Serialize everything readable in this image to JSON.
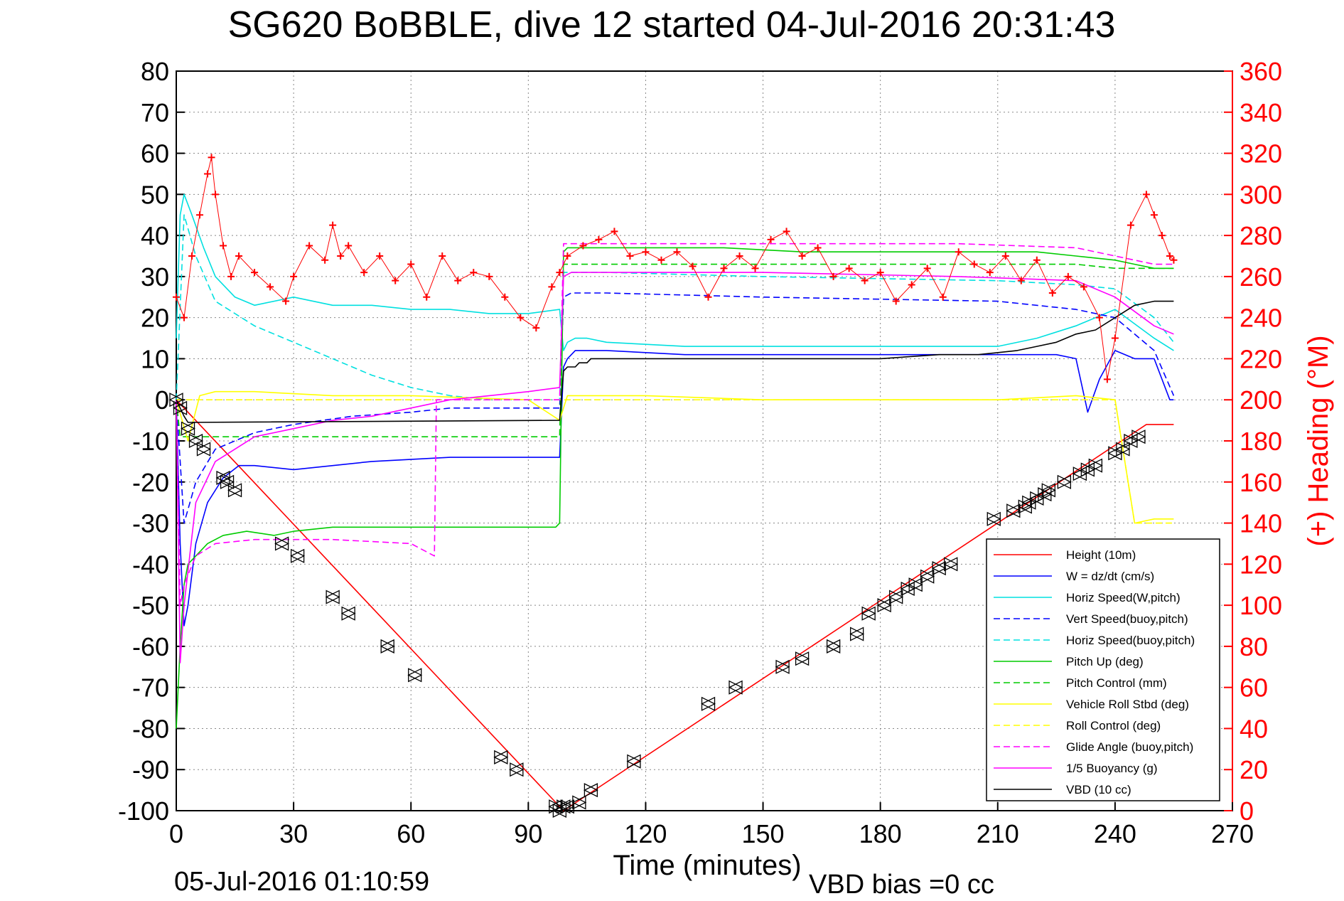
{
  "chart_data": {
    "type": "line",
    "title": "SG620 BoBBLE, dive 12 started 04-Jul-2016 20:31:43",
    "xlabel": "Time (minutes)",
    "ylabel_right": "(+) Heading (°M)",
    "footer_left": "05-Jul-2016 01:10:59",
    "footer_right": "VBD bias =0 cc",
    "xlim": [
      0,
      270
    ],
    "ylim": [
      -100,
      80
    ],
    "ylim_right": [
      0,
      360
    ],
    "x_ticks": [
      0,
      30,
      60,
      90,
      120,
      150,
      180,
      210,
      240,
      270
    ],
    "y_ticks": [
      -100,
      -90,
      -80,
      -70,
      -60,
      -50,
      -40,
      -30,
      -20,
      -10,
      0,
      10,
      20,
      30,
      40,
      50,
      60,
      70,
      80
    ],
    "y_ticks_right": [
      0,
      20,
      40,
      60,
      80,
      100,
      120,
      140,
      160,
      180,
      200,
      220,
      240,
      260,
      280,
      300,
      320,
      340,
      360
    ],
    "grid": true,
    "legend_position": "bottom-right",
    "colors": {
      "heading": "#ff0000",
      "right_axis": "#ff0000",
      "axis": "#000000"
    },
    "series": [
      {
        "name": "Height (10m)",
        "color": "#ff0000",
        "dash": "solid",
        "x": [
          0,
          99,
          248,
          255
        ],
        "y": [
          0,
          -100,
          -6,
          -6
        ]
      },
      {
        "name": "W = dz/dt (cm/s)",
        "color": "#0000ff",
        "dash": "solid",
        "x": [
          0,
          1,
          2,
          3,
          5,
          8,
          12,
          16,
          20,
          30,
          50,
          70,
          90,
          98,
          99,
          100,
          102,
          105,
          110,
          130,
          150,
          170,
          190,
          210,
          220,
          225,
          230,
          233,
          236,
          240,
          245,
          250,
          254,
          255
        ],
        "y": [
          0,
          -35,
          -55,
          -50,
          -35,
          -25,
          -19,
          -16,
          -16,
          -17,
          -15,
          -14,
          -14,
          -14,
          8,
          10,
          12,
          12,
          12,
          11,
          11,
          11,
          11,
          11,
          11,
          11,
          10,
          -3,
          5,
          12,
          10,
          10,
          0,
          0
        ]
      },
      {
        "name": "Horiz Speed(W,pitch)",
        "color": "#00e0e0",
        "dash": "solid",
        "x": [
          0,
          1,
          2,
          4,
          7,
          10,
          15,
          20,
          30,
          40,
          50,
          60,
          70,
          80,
          90,
          98,
          99,
          100,
          102,
          105,
          110,
          130,
          150,
          170,
          190,
          210,
          220,
          230,
          240,
          250,
          255
        ],
        "y": [
          15,
          45,
          50,
          45,
          37,
          30,
          25,
          23,
          25,
          23,
          23,
          22,
          22,
          21,
          21,
          22,
          12,
          14,
          15,
          15,
          14,
          13,
          13,
          13,
          13,
          13,
          15,
          18,
          22,
          15,
          12
        ]
      },
      {
        "name": "Vert Speed(buoy,pitch)",
        "color": "#0000ff",
        "dash": "dashed",
        "x": [
          0,
          2,
          5,
          10,
          20,
          30,
          45,
          60,
          70,
          85,
          98,
          99,
          101,
          110,
          150,
          210,
          230,
          240,
          250,
          255
        ],
        "y": [
          0,
          -30,
          -20,
          -12,
          -8,
          -6,
          -4,
          -3,
          -2,
          -2,
          -2,
          25,
          26,
          26,
          25,
          24,
          22,
          20,
          12,
          1
        ]
      },
      {
        "name": "Horiz Speed(buoy,pitch)",
        "color": "#00e0e0",
        "dash": "dashed",
        "x": [
          0,
          2,
          5,
          10,
          20,
          30,
          40,
          50,
          60,
          70,
          80,
          98,
          99,
          101,
          110,
          150,
          210,
          230,
          240,
          250,
          255
        ],
        "y": [
          0,
          45,
          35,
          24,
          18,
          14,
          10,
          6,
          3,
          1,
          0,
          0,
          31,
          31,
          31,
          30,
          29,
          28,
          27,
          20,
          14
        ]
      },
      {
        "name": "Pitch Up (deg)",
        "color": "#00cc00",
        "dash": "solid",
        "x": [
          0,
          1,
          2,
          3,
          5,
          8,
          12,
          18,
          25,
          30,
          40,
          50,
          60,
          70,
          80,
          90,
          97,
          98,
          99,
          100,
          102,
          105,
          120,
          140,
          160,
          180,
          200,
          220,
          230,
          240,
          245,
          250,
          255
        ],
        "y": [
          -80,
          -60,
          -45,
          -40,
          -38,
          -35,
          -33,
          -32,
          -33,
          -32,
          -31,
          -31,
          -31,
          -31,
          -31,
          -31,
          -31,
          -30,
          36,
          37,
          37,
          37,
          37,
          37,
          36,
          36,
          36,
          36,
          35,
          34,
          33,
          32,
          32
        ]
      },
      {
        "name": "Pitch Control (mm)",
        "color": "#00cc00",
        "dash": "dashed",
        "x": [
          0,
          1,
          3,
          98,
          99,
          100,
          230,
          240,
          255
        ],
        "y": [
          0,
          -9,
          -9,
          -9,
          33,
          33,
          33,
          32,
          32
        ]
      },
      {
        "name": "Vehicle Roll Stbd (deg)",
        "color": "#ffff00",
        "dash": "solid",
        "x": [
          0,
          3,
          6,
          10,
          20,
          40,
          60,
          90,
          98,
          100,
          120,
          150,
          180,
          210,
          230,
          240,
          245,
          250,
          255
        ],
        "y": [
          0,
          -10,
          1,
          2,
          2,
          1,
          1,
          0,
          -5,
          1,
          1,
          0,
          0,
          0,
          1,
          0,
          -30,
          -29,
          -29
        ]
      },
      {
        "name": "Roll Control (deg)",
        "color": "#ffff00",
        "dash": "dashed",
        "x": [
          0,
          5,
          10,
          98,
          100,
          200,
          230,
          240,
          245,
          255
        ],
        "y": [
          0,
          0,
          0,
          0,
          0,
          0,
          0,
          0,
          -30,
          -30
        ]
      },
      {
        "name": "Glide Angle (buoy,pitch)",
        "color": "#ff00ff",
        "dash": "dashed",
        "x": [
          0,
          1,
          2,
          5,
          10,
          20,
          40,
          60,
          66,
          66.5,
          98,
          99,
          101,
          150,
          200,
          230,
          240,
          250,
          255
        ],
        "y": [
          0,
          -50,
          -45,
          -38,
          -35,
          -34,
          -34,
          -35,
          -38,
          0,
          0,
          38,
          38,
          38,
          38,
          37,
          35,
          33,
          33
        ]
      },
      {
        "name": "1/5 Buoyancy (g)",
        "color": "#ff00ff",
        "dash": "solid",
        "x": [
          0,
          1,
          2,
          5,
          10,
          15,
          20,
          30,
          40,
          50,
          60,
          70,
          80,
          90,
          98,
          99,
          101,
          110,
          150,
          200,
          230,
          240,
          250,
          255
        ],
        "y": [
          0,
          -64,
          -50,
          -25,
          -15,
          -12,
          -9,
          -7,
          -5,
          -4,
          -2,
          0,
          1,
          2,
          3,
          30,
          31,
          31,
          31,
          30,
          29,
          25,
          18,
          16
        ]
      },
      {
        "name": "VBD (10 cc)",
        "color": "#000000",
        "dash": "solid",
        "x": [
          0,
          1,
          2,
          3,
          98,
          99,
          100,
          102,
          103,
          105,
          106,
          180,
          195,
          205,
          215,
          220,
          225,
          230,
          235,
          240,
          245,
          250,
          255
        ],
        "y": [
          0,
          -2,
          -4,
          -5.5,
          -5,
          7,
          8,
          8,
          9,
          9,
          10,
          10,
          11,
          11,
          12,
          13,
          14,
          16,
          17,
          20,
          23,
          24,
          24
        ]
      }
    ],
    "heading_series": {
      "name": "(+) Heading (°M)",
      "color": "#ff0000",
      "marker": "+",
      "x": [
        0,
        2,
        4,
        6,
        8,
        9,
        10,
        12,
        14,
        16,
        20,
        24,
        28,
        30,
        34,
        38,
        40,
        42,
        44,
        48,
        52,
        56,
        60,
        64,
        68,
        72,
        76,
        80,
        84,
        88,
        92,
        96,
        98,
        100,
        104,
        108,
        112,
        116,
        120,
        124,
        128,
        132,
        136,
        140,
        144,
        148,
        152,
        156,
        160,
        164,
        168,
        172,
        176,
        180,
        184,
        188,
        192,
        196,
        200,
        204,
        208,
        212,
        216,
        220,
        224,
        228,
        232,
        236,
        238,
        240,
        244,
        248,
        250,
        252,
        254,
        255
      ],
      "y": [
        250,
        240,
        270,
        290,
        310,
        318,
        300,
        275,
        260,
        270,
        262,
        255,
        248,
        260,
        275,
        268,
        285,
        270,
        275,
        262,
        270,
        258,
        266,
        250,
        270,
        258,
        262,
        260,
        250,
        240,
        235,
        255,
        262,
        270,
        275,
        278,
        282,
        270,
        272,
        268,
        272,
        265,
        250,
        264,
        270,
        264,
        278,
        282,
        270,
        274,
        260,
        264,
        258,
        262,
        248,
        256,
        264,
        250,
        272,
        266,
        262,
        270,
        258,
        268,
        252,
        260,
        255,
        240,
        210,
        230,
        285,
        300,
        290,
        280,
        270,
        268
      ]
    },
    "markers": {
      "symbol": "triangle",
      "color": "#000000",
      "x": [
        0,
        1,
        3,
        5,
        7,
        12,
        13,
        15,
        27,
        31,
        40,
        44,
        54,
        61,
        83,
        87,
        97,
        98,
        99,
        100,
        103,
        106,
        117,
        136,
        143,
        155,
        160,
        168,
        174,
        177,
        181,
        184,
        187,
        189,
        192,
        195,
        198,
        209,
        214,
        217,
        218,
        220,
        222,
        223,
        227,
        231,
        233,
        235,
        240,
        242,
        244,
        246
      ],
      "y": [
        0,
        -2,
        -7,
        -10,
        -12,
        -19,
        -20,
        -22,
        -35,
        -38,
        -48,
        -52,
        -60,
        -67,
        -87,
        -90,
        -99,
        -100,
        -99,
        -99,
        -98,
        -95,
        -88,
        -74,
        -70,
        -65,
        -63,
        -60,
        -57,
        -52,
        -50,
        -48,
        -46,
        -45,
        -43,
        -41,
        -40,
        -29,
        -27,
        -26,
        -25,
        -24,
        -23,
        -22,
        -20,
        -18,
        -17,
        -16,
        -13,
        -12,
        -10,
        -9
      ]
    }
  }
}
